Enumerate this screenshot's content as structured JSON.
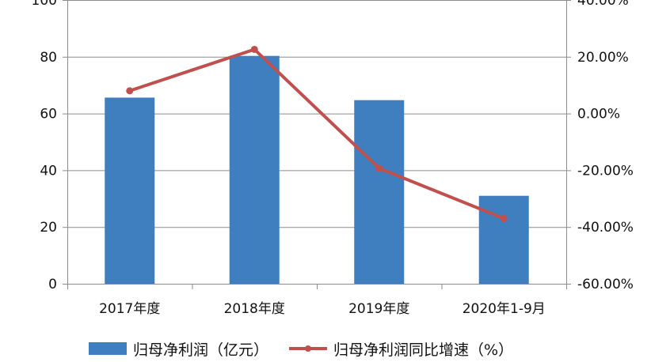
{
  "chart_data": {
    "type": "bar",
    "categories": [
      "2017年度",
      "2018年度",
      "2019年度",
      "2020年1-9月"
    ],
    "series": [
      {
        "name": "归母净利润（亿元）",
        "type": "bar",
        "axis": "left",
        "color": "#3F7FC0",
        "values": [
          65.6,
          80.3,
          64.7,
          31.0
        ]
      },
      {
        "name": "归母净利润同比增速（%）",
        "type": "line",
        "axis": "right",
        "color": "#C0504D",
        "values": [
          8.0,
          22.6,
          -19.3,
          -37.0
        ]
      }
    ],
    "y_left": {
      "min": 0,
      "max": 100,
      "step": 20,
      "ticks": [
        "0",
        "20",
        "40",
        "60",
        "80",
        "100"
      ]
    },
    "y_right": {
      "min": -60,
      "max": 40,
      "step": 20,
      "ticks": [
        "-60.00%",
        "-40.00%",
        "-20.00%",
        "0.00%",
        "20.00%",
        "40.00%"
      ]
    },
    "grid": "horizontal",
    "legend_position": "bottom"
  },
  "legend": {
    "bar_label": "归母净利润（亿元）",
    "line_label": "归母净利润同比增速（%）"
  }
}
